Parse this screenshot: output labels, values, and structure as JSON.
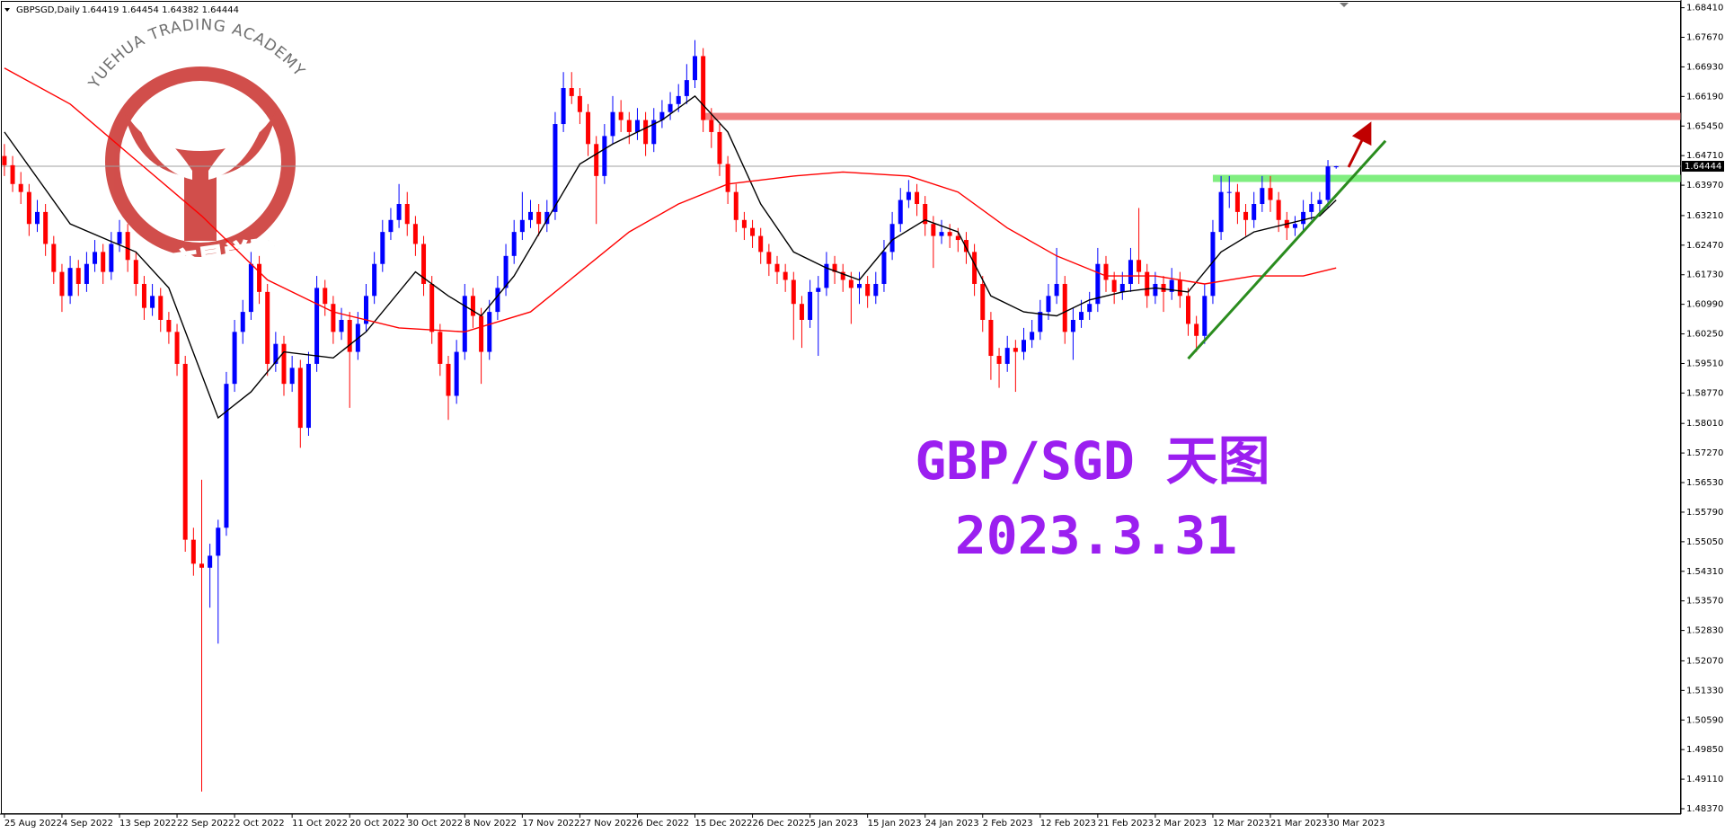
{
  "chart_data": {
    "type": "candlestick",
    "symbol": "GBPSGD,Daily",
    "quote": "1.64419 1.64454 1.64382 1.64444",
    "watermark_en": "YUEHUA TRADING ACADEMY",
    "watermark_cn": "悦华交易学院",
    "title": "GBP/SGD 天图",
    "subtitle": "2023.3.31",
    "up_color": "#0000ff",
    "down_color": "#ff0000",
    "ylim": [
      1.4837,
      1.6841
    ],
    "yticks": [
      {
        "value": 1.6841,
        "label": "1.68410"
      },
      {
        "value": 1.6767,
        "label": "1.67670"
      },
      {
        "value": 1.6693,
        "label": "1.66930"
      },
      {
        "value": 1.6619,
        "label": "1.66190"
      },
      {
        "value": 1.6545,
        "label": "1.65450"
      },
      {
        "value": 1.6471,
        "label": "1.64710"
      },
      {
        "value": 1.6397,
        "label": "1.63970"
      },
      {
        "value": 1.6321,
        "label": "1.63210"
      },
      {
        "value": 1.6247,
        "label": "1.62470"
      },
      {
        "value": 1.6173,
        "label": "1.61730"
      },
      {
        "value": 1.6099,
        "label": "1.60990"
      },
      {
        "value": 1.6025,
        "label": "1.60250"
      },
      {
        "value": 1.5951,
        "label": "1.59510"
      },
      {
        "value": 1.5877,
        "label": "1.58770"
      },
      {
        "value": 1.5801,
        "label": "1.58010"
      },
      {
        "value": 1.5727,
        "label": "1.57270"
      },
      {
        "value": 1.5653,
        "label": "1.56530"
      },
      {
        "value": 1.5579,
        "label": "1.55790"
      },
      {
        "value": 1.5505,
        "label": "1.55050"
      },
      {
        "value": 1.5431,
        "label": "1.54310"
      },
      {
        "value": 1.5357,
        "label": "1.53570"
      },
      {
        "value": 1.5283,
        "label": "1.52830"
      },
      {
        "value": 1.5207,
        "label": "1.52070"
      },
      {
        "value": 1.5133,
        "label": "1.51330"
      },
      {
        "value": 1.5059,
        "label": "1.50590"
      },
      {
        "value": 1.4985,
        "label": "1.49850"
      },
      {
        "value": 1.4911,
        "label": "1.49110"
      },
      {
        "value": 1.4837,
        "label": "1.48370"
      }
    ],
    "last_price": 1.64444,
    "categories": [
      "25 Aug 2022",
      null,
      null,
      null,
      null,
      null,
      null,
      "4 Sep 2022",
      null,
      null,
      null,
      null,
      null,
      null,
      "13 Sep 2022",
      null,
      null,
      null,
      null,
      null,
      null,
      "22 Sep 2022",
      null,
      null,
      null,
      null,
      null,
      null,
      "2 Oct 2022",
      null,
      null,
      null,
      null,
      null,
      null,
      "11 Oct 2022",
      null,
      null,
      null,
      null,
      null,
      null,
      "20 Oct 2022",
      null,
      null,
      null,
      null,
      null,
      null,
      "30 Oct 2022",
      null,
      null,
      null,
      null,
      null,
      null,
      "8 Nov 2022",
      null,
      null,
      null,
      null,
      null,
      null,
      "17 Nov 2022",
      null,
      null,
      null,
      null,
      null,
      null,
      "27 Nov 2022",
      null,
      null,
      null,
      null,
      null,
      null,
      "6 Dec 2022",
      null,
      null,
      null,
      null,
      null,
      null,
      "15 Dec 2022",
      null,
      null,
      null,
      null,
      null,
      null,
      "26 Dec 2022",
      null,
      null,
      null,
      null,
      null,
      null,
      "5 Jan 2023",
      null,
      null,
      null,
      null,
      null,
      null,
      "15 Jan 2023",
      null,
      null,
      null,
      null,
      null,
      null,
      "24 Jan 2023",
      null,
      null,
      null,
      null,
      null,
      null,
      "2 Feb 2023",
      null,
      null,
      null,
      null,
      null,
      null,
      "12 Feb 2023",
      null,
      null,
      null,
      null,
      null,
      null,
      "21 Feb 2023",
      null,
      null,
      null,
      null,
      null,
      null,
      "2 Mar 2023",
      null,
      null,
      null,
      null,
      null,
      null,
      "12 Mar 2023",
      null,
      null,
      null,
      null,
      null,
      null,
      "21 Mar 2023",
      null,
      null,
      null,
      null,
      null,
      null,
      "30 Mar 2023",
      null
    ],
    "ohlc": [
      [
        1.647,
        1.65,
        1.642,
        1.6447
      ],
      [
        1.6447,
        1.647,
        1.638,
        1.64
      ],
      [
        1.64,
        1.643,
        1.635,
        1.638
      ],
      [
        1.638,
        1.64,
        1.627,
        1.63
      ],
      [
        1.63,
        1.636,
        1.628,
        1.633
      ],
      [
        1.633,
        1.635,
        1.622,
        1.625
      ],
      [
        1.625,
        1.627,
        1.615,
        1.618
      ],
      [
        1.618,
        1.62,
        1.608,
        1.612
      ],
      [
        1.612,
        1.622,
        1.61,
        1.619
      ],
      [
        1.619,
        1.621,
        1.612,
        1.615
      ],
      [
        1.615,
        1.623,
        1.613,
        1.62
      ],
      [
        1.62,
        1.626,
        1.618,
        1.623
      ],
      [
        1.623,
        1.625,
        1.615,
        1.618
      ],
      [
        1.618,
        1.628,
        1.616,
        1.625
      ],
      [
        1.625,
        1.631,
        1.623,
        1.628
      ],
      [
        1.628,
        1.63,
        1.618,
        1.621
      ],
      [
        1.621,
        1.623,
        1.612,
        1.615
      ],
      [
        1.615,
        1.617,
        1.606,
        1.609
      ],
      [
        1.609,
        1.615,
        1.607,
        1.612
      ],
      [
        1.612,
        1.614,
        1.603,
        1.606
      ],
      [
        1.606,
        1.608,
        1.6,
        1.603
      ],
      [
        1.603,
        1.605,
        1.592,
        1.595
      ],
      [
        1.595,
        1.597,
        1.548,
        1.551
      ],
      [
        1.551,
        1.554,
        1.542,
        1.545
      ],
      [
        1.545,
        1.566,
        1.488,
        1.544
      ],
      [
        1.544,
        1.55,
        1.534,
        1.547
      ],
      [
        1.547,
        1.556,
        1.525,
        1.554
      ],
      [
        1.554,
        1.593,
        1.552,
        1.59
      ],
      [
        1.59,
        1.606,
        1.588,
        1.603
      ],
      [
        1.603,
        1.611,
        1.6,
        1.608
      ],
      [
        1.608,
        1.623,
        1.606,
        1.62
      ],
      [
        1.62,
        1.622,
        1.61,
        1.613
      ],
      [
        1.613,
        1.615,
        1.592,
        1.595
      ],
      [
        1.595,
        1.603,
        1.593,
        1.6
      ],
      [
        1.6,
        1.602,
        1.587,
        1.59
      ],
      [
        1.59,
        1.597,
        1.588,
        1.594
      ],
      [
        1.594,
        1.596,
        1.574,
        1.579
      ],
      [
        1.579,
        1.598,
        1.577,
        1.595
      ],
      [
        1.595,
        1.617,
        1.593,
        1.614
      ],
      [
        1.614,
        1.616,
        1.607,
        1.61
      ],
      [
        1.61,
        1.612,
        1.6,
        1.603
      ],
      [
        1.603,
        1.609,
        1.601,
        1.606
      ],
      [
        1.606,
        1.608,
        1.584,
        1.598
      ],
      [
        1.598,
        1.608,
        1.596,
        1.605
      ],
      [
        1.605,
        1.615,
        1.603,
        1.612
      ],
      [
        1.612,
        1.623,
        1.61,
        1.62
      ],
      [
        1.62,
        1.631,
        1.618,
        1.628
      ],
      [
        1.628,
        1.634,
        1.626,
        1.631
      ],
      [
        1.631,
        1.64,
        1.629,
        1.635
      ],
      [
        1.635,
        1.638,
        1.627,
        1.63
      ],
      [
        1.63,
        1.632,
        1.622,
        1.625
      ],
      [
        1.625,
        1.627,
        1.612,
        1.615
      ],
      [
        1.615,
        1.617,
        1.6,
        1.603
      ],
      [
        1.603,
        1.605,
        1.592,
        1.595
      ],
      [
        1.595,
        1.597,
        1.581,
        1.587
      ],
      [
        1.587,
        1.601,
        1.585,
        1.598
      ],
      [
        1.598,
        1.615,
        1.596,
        1.612
      ],
      [
        1.612,
        1.614,
        1.604,
        1.607
      ],
      [
        1.607,
        1.609,
        1.59,
        1.598
      ],
      [
        1.598,
        1.611,
        1.596,
        1.608
      ],
      [
        1.608,
        1.617,
        1.606,
        1.614
      ],
      [
        1.614,
        1.625,
        1.612,
        1.622
      ],
      [
        1.622,
        1.631,
        1.62,
        1.628
      ],
      [
        1.628,
        1.638,
        1.626,
        1.631
      ],
      [
        1.631,
        1.636,
        1.629,
        1.633
      ],
      [
        1.633,
        1.635,
        1.627,
        1.63
      ],
      [
        1.63,
        1.636,
        1.628,
        1.633
      ],
      [
        1.633,
        1.658,
        1.631,
        1.655
      ],
      [
        1.655,
        1.668,
        1.653,
        1.664
      ],
      [
        1.664,
        1.668,
        1.66,
        1.662
      ],
      [
        1.662,
        1.664,
        1.655,
        1.658
      ],
      [
        1.658,
        1.66,
        1.647,
        1.65
      ],
      [
        1.65,
        1.652,
        1.63,
        1.642
      ],
      [
        1.642,
        1.655,
        1.64,
        1.652
      ],
      [
        1.652,
        1.662,
        1.65,
        1.658
      ],
      [
        1.658,
        1.661,
        1.653,
        1.656
      ],
      [
        1.656,
        1.658,
        1.65,
        1.653
      ],
      [
        1.653,
        1.659,
        1.651,
        1.656
      ],
      [
        1.656,
        1.658,
        1.647,
        1.65
      ],
      [
        1.65,
        1.659,
        1.648,
        1.656
      ],
      [
        1.656,
        1.661,
        1.654,
        1.658
      ],
      [
        1.658,
        1.663,
        1.656,
        1.66
      ],
      [
        1.66,
        1.665,
        1.658,
        1.662
      ],
      [
        1.662,
        1.67,
        1.66,
        1.666
      ],
      [
        1.666,
        1.676,
        1.664,
        1.672
      ],
      [
        1.672,
        1.674,
        1.653,
        1.656
      ],
      [
        1.656,
        1.659,
        1.649,
        1.653
      ],
      [
        1.653,
        1.655,
        1.642,
        1.645
      ],
      [
        1.645,
        1.647,
        1.635,
        1.638
      ],
      [
        1.638,
        1.64,
        1.628,
        1.631
      ],
      [
        1.631,
        1.633,
        1.626,
        1.629
      ],
      [
        1.629,
        1.631,
        1.624,
        1.627
      ],
      [
        1.627,
        1.629,
        1.62,
        1.623
      ],
      [
        1.623,
        1.625,
        1.617,
        1.62
      ],
      [
        1.62,
        1.622,
        1.615,
        1.618
      ],
      [
        1.618,
        1.62,
        1.613,
        1.616
      ],
      [
        1.616,
        1.618,
        1.601,
        1.61
      ],
      [
        1.61,
        1.612,
        1.599,
        1.606
      ],
      [
        1.606,
        1.616,
        1.604,
        1.613
      ],
      [
        1.613,
        1.617,
        1.597,
        1.614
      ],
      [
        1.614,
        1.623,
        1.612,
        1.62
      ],
      [
        1.62,
        1.622,
        1.615,
        1.618
      ],
      [
        1.618,
        1.62,
        1.613,
        1.616
      ],
      [
        1.616,
        1.618,
        1.605,
        1.614
      ],
      [
        1.614,
        1.618,
        1.61,
        1.615
      ],
      [
        1.615,
        1.617,
        1.609,
        1.612
      ],
      [
        1.612,
        1.618,
        1.61,
        1.615
      ],
      [
        1.615,
        1.626,
        1.613,
        1.623
      ],
      [
        1.623,
        1.633,
        1.621,
        1.63
      ],
      [
        1.63,
        1.639,
        1.628,
        1.636
      ],
      [
        1.636,
        1.641,
        1.634,
        1.638
      ],
      [
        1.638,
        1.64,
        1.632,
        1.635
      ],
      [
        1.635,
        1.637,
        1.627,
        1.63
      ],
      [
        1.63,
        1.632,
        1.619,
        1.627
      ],
      [
        1.627,
        1.631,
        1.625,
        1.628
      ],
      [
        1.628,
        1.63,
        1.624,
        1.627
      ],
      [
        1.627,
        1.629,
        1.623,
        1.626
      ],
      [
        1.626,
        1.628,
        1.62,
        1.623
      ],
      [
        1.623,
        1.625,
        1.612,
        1.615
      ],
      [
        1.615,
        1.617,
        1.603,
        1.606
      ],
      [
        1.606,
        1.608,
        1.591,
        1.597
      ],
      [
        1.597,
        1.599,
        1.589,
        1.595
      ],
      [
        1.595,
        1.602,
        1.593,
        1.599
      ],
      [
        1.599,
        1.601,
        1.588,
        1.598
      ],
      [
        1.598,
        1.604,
        1.596,
        1.601
      ],
      [
        1.601,
        1.606,
        1.599,
        1.603
      ],
      [
        1.603,
        1.611,
        1.601,
        1.608
      ],
      [
        1.608,
        1.615,
        1.606,
        1.612
      ],
      [
        1.612,
        1.624,
        1.61,
        1.615
      ],
      [
        1.615,
        1.617,
        1.6,
        1.603
      ],
      [
        1.603,
        1.609,
        1.596,
        1.606
      ],
      [
        1.606,
        1.611,
        1.604,
        1.608
      ],
      [
        1.608,
        1.613,
        1.606,
        1.61
      ],
      [
        1.61,
        1.624,
        1.608,
        1.62
      ],
      [
        1.62,
        1.622,
        1.613,
        1.616
      ],
      [
        1.616,
        1.618,
        1.61,
        1.613
      ],
      [
        1.613,
        1.618,
        1.611,
        1.615
      ],
      [
        1.615,
        1.624,
        1.613,
        1.621
      ],
      [
        1.621,
        1.634,
        1.615,
        1.618
      ],
      [
        1.618,
        1.62,
        1.609,
        1.612
      ],
      [
        1.612,
        1.618,
        1.61,
        1.615
      ],
      [
        1.615,
        1.617,
        1.608,
        1.613
      ],
      [
        1.613,
        1.619,
        1.611,
        1.616
      ],
      [
        1.616,
        1.618,
        1.609,
        1.612
      ],
      [
        1.612,
        1.614,
        1.602,
        1.605
      ],
      [
        1.605,
        1.607,
        1.598,
        1.602
      ],
      [
        1.602,
        1.615,
        1.6,
        1.612
      ],
      [
        1.612,
        1.631,
        1.61,
        1.628
      ],
      [
        1.628,
        1.642,
        1.626,
        1.638
      ],
      [
        1.638,
        1.642,
        1.634,
        1.638
      ],
      [
        1.638,
        1.64,
        1.63,
        1.633
      ],
      [
        1.633,
        1.635,
        1.627,
        1.631
      ],
      [
        1.631,
        1.638,
        1.629,
        1.635
      ],
      [
        1.635,
        1.642,
        1.633,
        1.639
      ],
      [
        1.639,
        1.642,
        1.633,
        1.636
      ],
      [
        1.636,
        1.638,
        1.628,
        1.631
      ],
      [
        1.631,
        1.633,
        1.626,
        1.629
      ],
      [
        1.629,
        1.632,
        1.627,
        1.63
      ],
      [
        1.63,
        1.636,
        1.628,
        1.633
      ],
      [
        1.633,
        1.638,
        1.631,
        1.635
      ],
      [
        1.635,
        1.638,
        1.633,
        1.636
      ],
      [
        1.636,
        1.646,
        1.634,
        1.6444
      ],
      [
        1.64419,
        1.64454,
        1.64382,
        1.64444
      ]
    ],
    "ma": [
      {
        "color": "#000000",
        "x": [
          0,
          8,
          16,
          20,
          26,
          30,
          34,
          40,
          44,
          50,
          54,
          58,
          62,
          66,
          70,
          74,
          80,
          84,
          88,
          92,
          96,
          100,
          104,
          108,
          112,
          116,
          120,
          124,
          128,
          132,
          136,
          140,
          144,
          148,
          152,
          156,
          160,
          162
        ],
        "values": [
          1.653,
          1.63,
          1.623,
          1.614,
          1.5815,
          1.588,
          1.598,
          1.5965,
          1.603,
          1.618,
          1.612,
          1.607,
          1.617,
          1.631,
          1.645,
          1.65,
          1.656,
          1.662,
          1.653,
          1.635,
          1.623,
          1.619,
          1.616,
          1.626,
          1.631,
          1.628,
          1.612,
          1.608,
          1.607,
          1.611,
          1.613,
          1.614,
          1.613,
          1.623,
          1.628,
          1.63,
          1.632,
          1.636
        ]
      },
      {
        "color": "#ff0000",
        "x": [
          0,
          8,
          16,
          24,
          32,
          40,
          48,
          56,
          64,
          70,
          76,
          82,
          88,
          96,
          102,
          110,
          116,
          122,
          128,
          134,
          140,
          146,
          152,
          158,
          162
        ],
        "values": [
          1.669,
          1.66,
          1.646,
          1.632,
          1.616,
          1.608,
          1.604,
          1.603,
          1.608,
          1.618,
          1.628,
          1.635,
          1.64,
          1.642,
          1.643,
          1.642,
          1.638,
          1.629,
          1.622,
          1.617,
          1.617,
          1.615,
          1.617,
          1.617,
          1.619
        ]
      }
    ],
    "zones": [
      {
        "start": 85,
        "value": 1.6569,
        "color": "#f08080"
      },
      {
        "start": 147,
        "value": 1.6414,
        "color": "#80ee80"
      }
    ],
    "trendline": {
      "x": [
        144,
        168
      ],
      "values": [
        1.5963,
        1.6508
      ],
      "color": "#2a8c1e"
    }
  }
}
